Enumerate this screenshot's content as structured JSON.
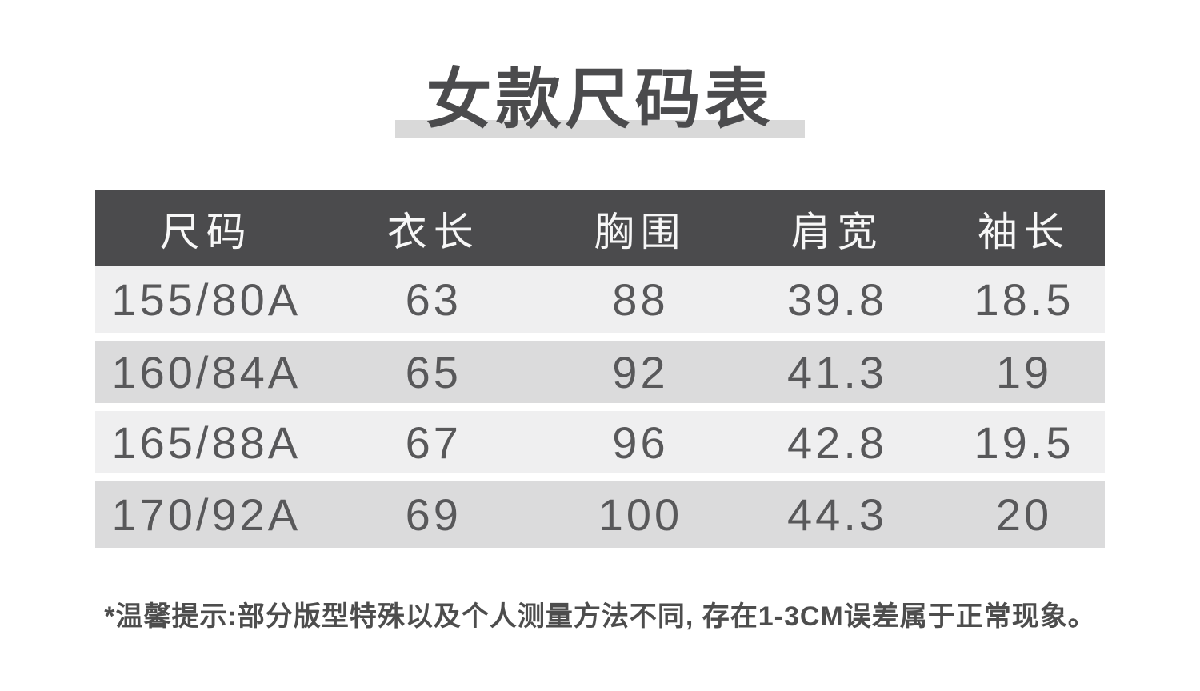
{
  "page": {
    "title": "女款尺码表",
    "note": "*温馨提示:部分版型特殊以及个人测量方法不同, 存在1-3CM误差属于正常现象。"
  },
  "size_chart": {
    "columns": [
      "尺码",
      "衣长",
      "胸围",
      "肩宽",
      "袖长"
    ],
    "rows": [
      [
        "155/80A",
        "63",
        "88",
        "39.8",
        "18.5"
      ],
      [
        "160/84A",
        "65",
        "92",
        "41.3",
        "19"
      ],
      [
        "165/88A",
        "67",
        "96",
        "42.8",
        "19.5"
      ],
      [
        "170/92A",
        "69",
        "100",
        "44.3",
        "20"
      ]
    ]
  },
  "colors": {
    "header_bg": "#4b4b4d",
    "row_light": "#efeff0",
    "row_dark": "#dbdbdc",
    "title_bar": "#d9d9d9",
    "header_text": "#f7f7f7",
    "cell_text": "#58585a",
    "title_text": "#4b4b4d",
    "note_text": "#4d4d4d",
    "page_bg": "#ffffff"
  }
}
